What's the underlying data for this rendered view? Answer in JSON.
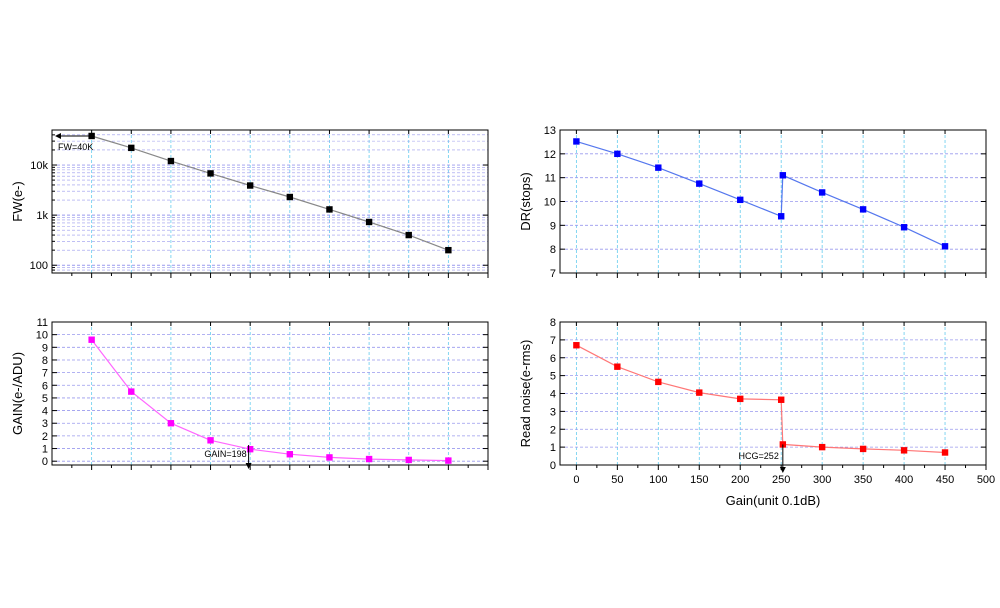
{
  "chart_data": [
    {
      "id": "fw",
      "type": "line",
      "ylabel": "FW(e-)",
      "xlabel": "",
      "yscale": "log",
      "xlim": [
        -50,
        500
      ],
      "ylim": [
        70,
        50000
      ],
      "y_ticks": [
        100,
        1000,
        10000
      ],
      "y_tick_labels": [
        "100",
        "1k",
        "10k"
      ],
      "x_ticks": [
        0,
        50,
        100,
        150,
        200,
        250,
        300,
        350,
        400,
        450,
        500
      ],
      "x_tick_labels": [],
      "grid": true,
      "series": [
        {
          "color": "#000000",
          "line_color": "#888888",
          "x": [
            0,
            50,
            100,
            150,
            200,
            250,
            300,
            350,
            400,
            450
          ],
          "values": [
            38000,
            22000,
            12000,
            6800,
            3900,
            2300,
            1300,
            730,
            400,
            200
          ]
        }
      ],
      "annotations": [
        {
          "text": "FW=40K"
        }
      ]
    },
    {
      "id": "dr",
      "type": "line",
      "ylabel": "DR(stops)",
      "xlabel": "",
      "xlim": [
        -20,
        500
      ],
      "ylim": [
        7,
        13
      ],
      "y_ticks": [
        7,
        8,
        9,
        10,
        11,
        12,
        13
      ],
      "y_tick_labels": [
        "7",
        "8",
        "9",
        "10",
        "11",
        "12",
        "13"
      ],
      "x_ticks": [
        0,
        50,
        100,
        150,
        200,
        250,
        300,
        350,
        400,
        450,
        500
      ],
      "x_tick_labels": [],
      "grid": true,
      "series": [
        {
          "color": "#0000ff",
          "line_color": "#5577ee",
          "x": [
            0,
            50,
            100,
            150,
            200,
            250,
            252,
            300,
            350,
            400,
            450
          ],
          "values": [
            12.52,
            12.0,
            11.42,
            10.75,
            10.07,
            9.38,
            11.1,
            10.38,
            9.67,
            8.92,
            8.12
          ]
        }
      ]
    },
    {
      "id": "gain",
      "type": "line",
      "ylabel": "GAIN(e-/ADU)",
      "xlabel": "",
      "xlim": [
        -50,
        500
      ],
      "ylim": [
        -0.3,
        11
      ],
      "y_ticks": [
        0,
        1,
        2,
        3,
        4,
        5,
        6,
        7,
        8,
        9,
        10,
        11
      ],
      "y_tick_labels": [
        "0",
        "1",
        "2",
        "3",
        "4",
        "5",
        "6",
        "7",
        "8",
        "9",
        "10",
        "11"
      ],
      "x_ticks": [
        0,
        50,
        100,
        150,
        200,
        250,
        300,
        350,
        400,
        450,
        500
      ],
      "x_tick_labels": [],
      "grid": true,
      "series": [
        {
          "color": "#ff00ff",
          "line_color": "#ff66ff",
          "x": [
            0,
            50,
            100,
            150,
            200,
            250,
            300,
            350,
            400,
            450
          ],
          "values": [
            9.6,
            5.5,
            3.0,
            1.65,
            0.95,
            0.55,
            0.3,
            0.17,
            0.1,
            0.05
          ]
        }
      ],
      "annotations": [
        {
          "text": "GAIN=198",
          "x": 198
        }
      ]
    },
    {
      "id": "rn",
      "type": "line",
      "ylabel": "Read noise(e-rms)",
      "xlabel": "Gain(unit 0.1dB)",
      "xlim": [
        -20,
        500
      ],
      "ylim": [
        0,
        8
      ],
      "y_ticks": [
        0,
        1,
        2,
        3,
        4,
        5,
        6,
        7,
        8
      ],
      "y_tick_labels": [
        "0",
        "1",
        "2",
        "3",
        "4",
        "5",
        "6",
        "7",
        "8"
      ],
      "x_ticks": [
        0,
        50,
        100,
        150,
        200,
        250,
        300,
        350,
        400,
        450,
        500
      ],
      "x_tick_labels": [
        "0",
        "50",
        "100",
        "150",
        "200",
        "250",
        "300",
        "350",
        "400",
        "450",
        "500"
      ],
      "grid": true,
      "series": [
        {
          "color": "#ff0000",
          "line_color": "#ff7777",
          "x": [
            0,
            50,
            100,
            150,
            200,
            250,
            252,
            300,
            350,
            400,
            450
          ],
          "values": [
            6.7,
            5.5,
            4.65,
            4.05,
            3.7,
            3.65,
            1.15,
            1.0,
            0.9,
            0.82,
            0.7
          ]
        }
      ],
      "annotations": [
        {
          "text": "HCG=252",
          "x": 252
        }
      ]
    }
  ]
}
